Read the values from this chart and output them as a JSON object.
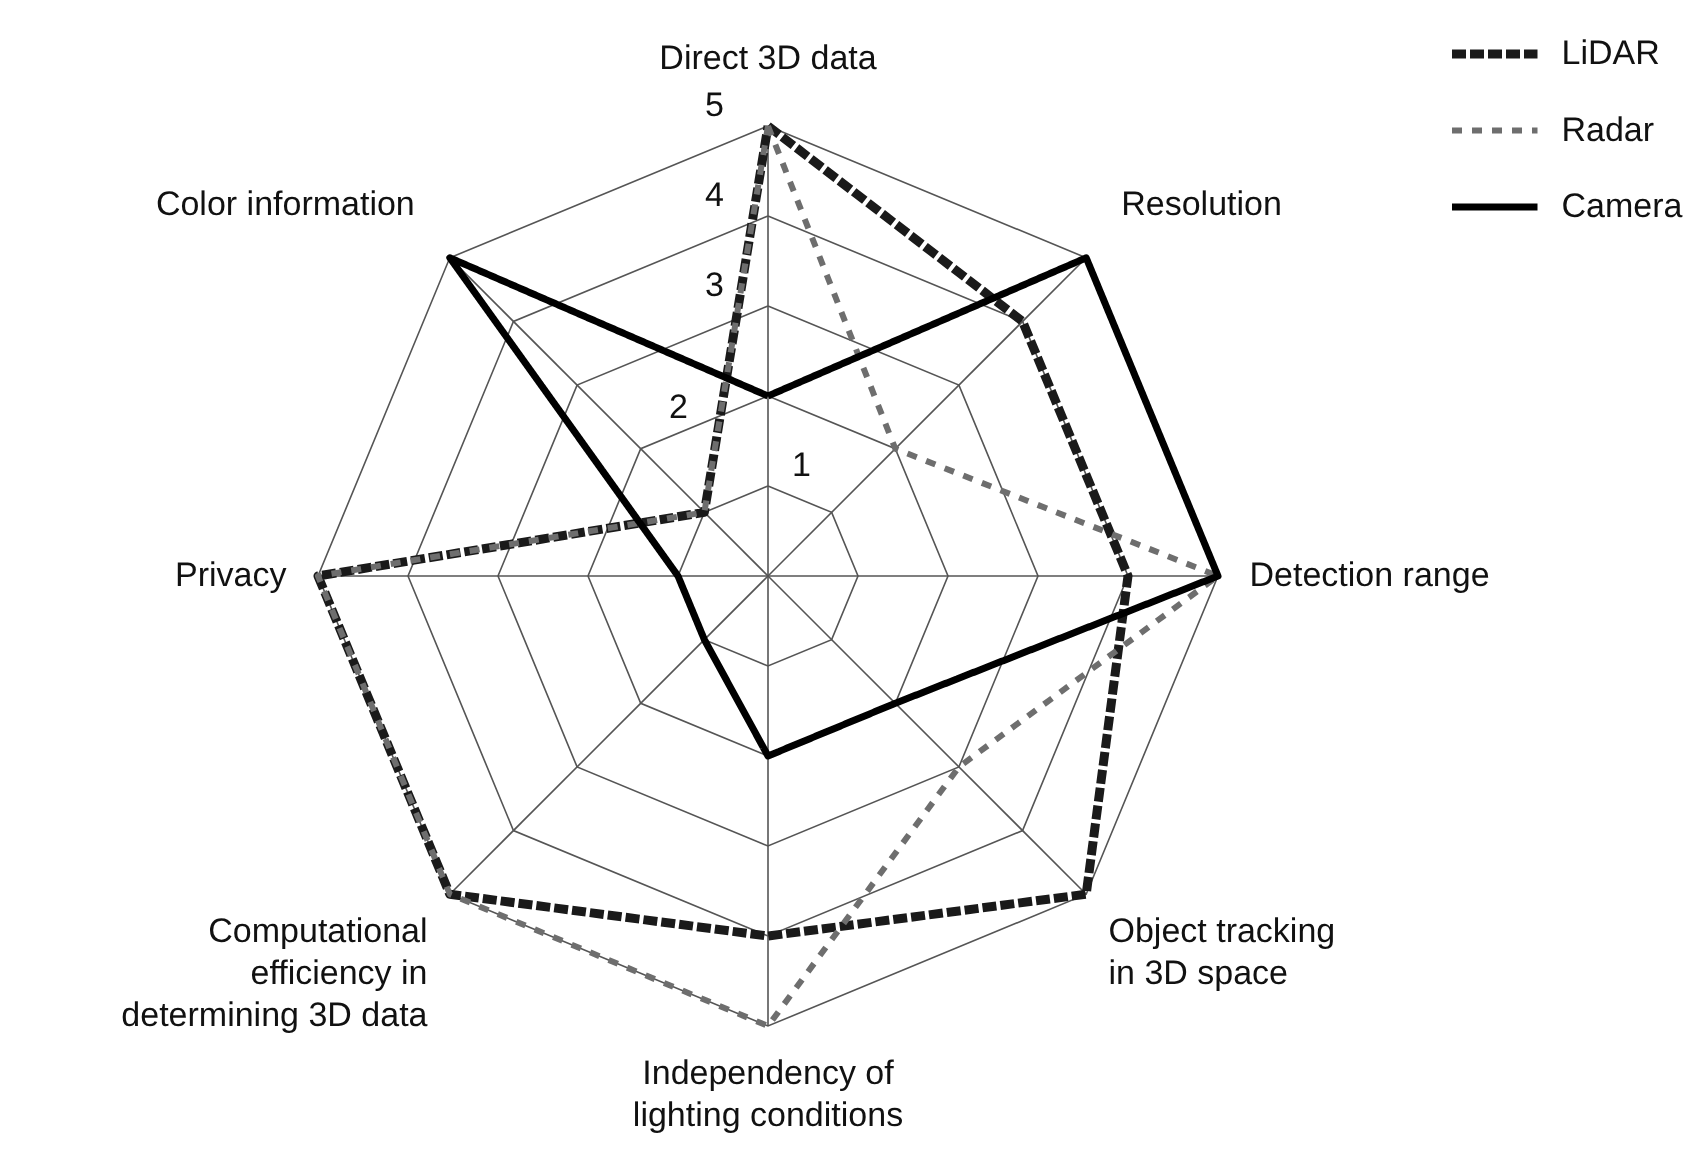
{
  "chart_data": {
    "type": "radar",
    "categories": [
      "Direct 3D data",
      "Resolution",
      "Detection range",
      "Object tracking\nin 3D space",
      "Independency of\nlighting conditions",
      "Computational\nefficiency in\ndetermining 3D data",
      "Privacy",
      "Color information"
    ],
    "series": [
      {
        "name": "LiDAR",
        "color": "#1a1a1a",
        "line_style": "dashed",
        "values": [
          5,
          4,
          4,
          5,
          4,
          5,
          5,
          1
        ]
      },
      {
        "name": "Radar",
        "color": "#6e6e6e",
        "line_style": "dotted",
        "values": [
          5,
          2,
          5,
          3,
          5,
          5,
          5,
          1
        ]
      },
      {
        "name": "Camera",
        "color": "#000000",
        "line_style": "solid",
        "values": [
          2,
          5,
          5,
          2,
          2,
          1,
          1,
          5
        ]
      }
    ],
    "ylim": [
      0,
      5
    ],
    "yticks": [
      1,
      2,
      3,
      4,
      5
    ],
    "grid": true,
    "legend": "top right",
    "marker": "none"
  }
}
